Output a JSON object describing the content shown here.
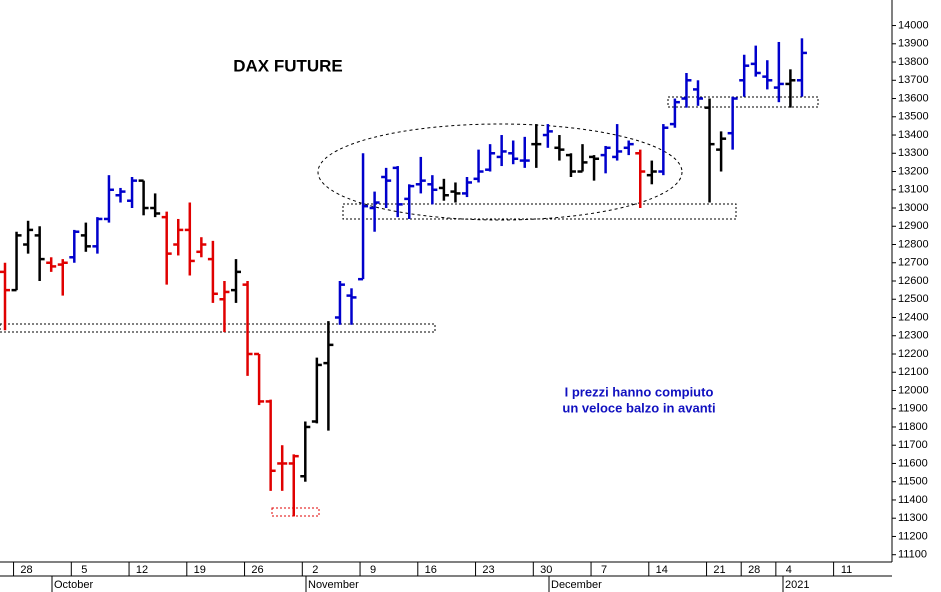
{
  "chart_data": {
    "type": "ohlc",
    "title": "DAX FUTURE",
    "annotation": [
      "I prezzi hanno compiuto",
      "un veloce balzo in avanti"
    ],
    "x_groups": [
      "October",
      "November",
      "December",
      "2021"
    ],
    "categories": [
      null,
      "28",
      null,
      null,
      null,
      null,
      "5",
      null,
      null,
      null,
      null,
      "12",
      null,
      null,
      null,
      null,
      "19",
      null,
      null,
      null,
      null,
      "26",
      null,
      null,
      null,
      null,
      "2",
      null,
      null,
      null,
      null,
      "9",
      null,
      null,
      null,
      null,
      "16",
      null,
      null,
      null,
      null,
      "23",
      null,
      null,
      null,
      null,
      "30",
      null,
      null,
      null,
      null,
      "7",
      null,
      null,
      null,
      null,
      "14",
      null,
      null,
      null,
      null,
      "21",
      null,
      null,
      "28",
      null,
      null,
      "4",
      null,
      null,
      null,
      null,
      "11",
      null,
      null,
      null,
      null
    ],
    "open": [
      12650,
      12550,
      12800,
      12850,
      12700,
      12690,
      12730,
      12850,
      12790,
      12940,
      13070,
      13040,
      13150,
      13000,
      12950,
      12800,
      12880,
      12760,
      12720,
      12500,
      12550,
      12580,
      12200,
      11940,
      11600,
      11600,
      11530,
      11830,
      12150,
      12400,
      12520,
      12610,
      13000,
      13170,
      13220,
      13050,
      13130,
      13130,
      13110,
      13090,
      13080,
      13160,
      13210,
      13280,
      13300,
      13260,
      13350,
      13400,
      13330,
      13290,
      13200,
      13280,
      13290,
      13280,
      13330,
      13300,
      13180,
      13200,
      13460,
      13600,
      13650,
      13550,
      13320,
      13410,
      13700,
      13790,
      13720,
      13660,
      13680,
      13700,
      null,
      null,
      null,
      null,
      null,
      null,
      null
    ],
    "high": [
      12700,
      12870,
      12930,
      12900,
      12730,
      12720,
      12880,
      12920,
      12950,
      13180,
      13110,
      13170,
      13150,
      13080,
      12980,
      12940,
      13030,
      12840,
      12820,
      12600,
      12720,
      12600,
      12200,
      11950,
      11700,
      11650,
      11830,
      12180,
      12380,
      12600,
      12560,
      13300,
      13090,
      13220,
      13230,
      13130,
      13280,
      13180,
      13160,
      13140,
      13170,
      13320,
      13350,
      13400,
      13370,
      13390,
      13460,
      13460,
      13400,
      13300,
      13350,
      13290,
      13340,
      13460,
      13370,
      13320,
      13260,
      13460,
      13600,
      13740,
      13700,
      13600,
      13420,
      13610,
      13840,
      13890,
      13810,
      13910,
      13760,
      13930,
      null,
      null,
      null,
      null,
      null,
      null,
      null
    ],
    "low": [
      12330,
      12550,
      12750,
      12600,
      12650,
      12520,
      12700,
      12760,
      12750,
      12920,
      13030,
      13000,
      12960,
      12950,
      12580,
      12740,
      12630,
      12730,
      12480,
      12320,
      12480,
      12080,
      11920,
      11450,
      11450,
      11310,
      11500,
      11820,
      11780,
      12360,
      12360,
      12610,
      12870,
      13000,
      12950,
      12940,
      13080,
      13020,
      13040,
      13030,
      13060,
      13140,
      13200,
      13230,
      13240,
      13220,
      13220,
      13330,
      13260,
      13170,
      13200,
      13150,
      13190,
      13260,
      13290,
      13000,
      13130,
      13180,
      13440,
      13550,
      13560,
      13030,
      13200,
      13320,
      13610,
      13720,
      13650,
      13580,
      13550,
      13610,
      null,
      null,
      null,
      null,
      null,
      null,
      null
    ],
    "close": [
      12550,
      12850,
      12880,
      12720,
      12680,
      12700,
      12870,
      12790,
      12940,
      13100,
      13090,
      13150,
      13000,
      12970,
      12750,
      12880,
      12710,
      12800,
      12530,
      12540,
      12650,
      12200,
      11940,
      11560,
      11600,
      11640,
      11800,
      12140,
      12250,
      12580,
      12510,
      13010,
      13030,
      13150,
      13020,
      13120,
      13150,
      13100,
      13070,
      13080,
      13140,
      13200,
      13300,
      13310,
      13270,
      13260,
      13350,
      13420,
      13320,
      13200,
      13250,
      13270,
      13330,
      13310,
      13350,
      13200,
      13200,
      13440,
      13580,
      13700,
      13600,
      13350,
      13380,
      13600,
      13780,
      13740,
      13700,
      13680,
      13700,
      13850,
      null,
      null,
      null,
      null,
      null,
      null,
      null
    ],
    "bar_colors": [
      "#e00000",
      "#000000",
      "#000000",
      "#000000",
      "#e00000",
      "#e00000",
      "#0000cc",
      "#000000",
      "#0000cc",
      "#0000cc",
      "#0000cc",
      "#0000cc",
      "#000000",
      "#000000",
      "#e00000",
      "#e00000",
      "#e00000",
      "#e00000",
      "#e00000",
      "#e00000",
      "#000000",
      "#e00000",
      "#e00000",
      "#e00000",
      "#e00000",
      "#e00000",
      "#000000",
      "#000000",
      "#000000",
      "#0000cc",
      "#0000cc",
      "#0000cc",
      "#0000cc",
      "#0000cc",
      "#0000cc",
      "#0000cc",
      "#0000cc",
      "#0000cc",
      "#000000",
      "#000000",
      "#0000cc",
      "#0000cc",
      "#0000cc",
      "#0000cc",
      "#0000cc",
      "#0000cc",
      "#000000",
      "#0000cc",
      "#000000",
      "#000000",
      "#000000",
      "#000000",
      "#0000cc",
      "#0000cc",
      "#0000cc",
      "#e00000",
      "#000000",
      "#0000cc",
      "#0000cc",
      "#0000cc",
      "#0000cc",
      "#000000",
      "#000000",
      "#0000cc",
      "#0000cc",
      "#0000cc",
      "#0000cc",
      "#0000cc",
      "#000000",
      "#0000cc",
      null,
      null,
      null,
      null,
      null,
      null,
      null
    ],
    "ylim": [
      11060,
      14140
    ],
    "yticks": [
      11100,
      11200,
      11300,
      11400,
      11500,
      11600,
      11700,
      11800,
      11900,
      12000,
      12100,
      12200,
      12300,
      12400,
      12500,
      12600,
      12700,
      12800,
      12900,
      13000,
      13100,
      13200,
      13300,
      13400,
      13500,
      13600,
      13700,
      13800,
      13900,
      14000
    ]
  }
}
